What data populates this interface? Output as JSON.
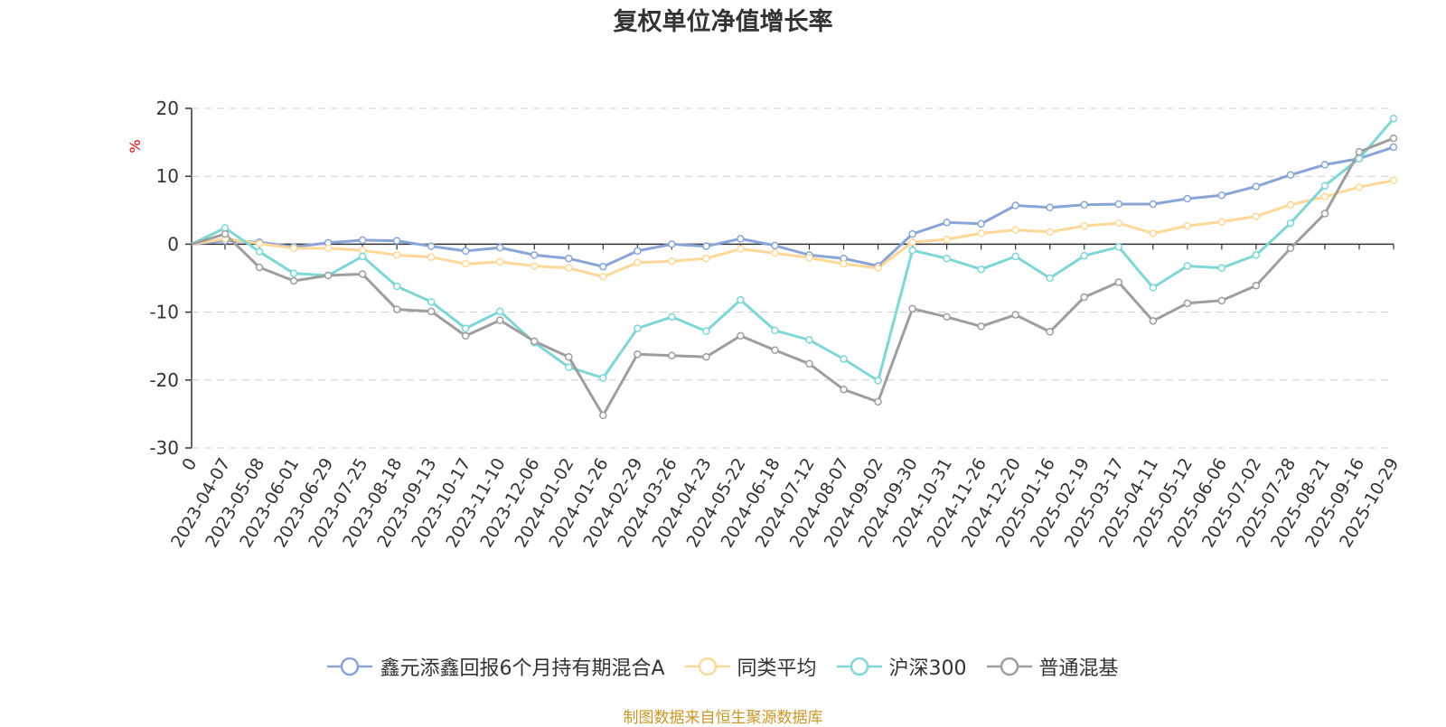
{
  "chart_data": {
    "type": "line",
    "title": "复权单位净值增长率",
    "ylabel": "%",
    "ylim": [
      -30,
      20
    ],
    "yticks": [
      "20",
      "10",
      "0",
      "-10",
      "-20",
      "-30"
    ],
    "x_origin_label": "0",
    "categories": [
      "2023-04-07",
      "2023-05-08",
      "2023-06-01",
      "2023-06-29",
      "2023-07-25",
      "2023-08-18",
      "2023-09-13",
      "2023-10-17",
      "2023-11-10",
      "2023-12-06",
      "2024-01-02",
      "2024-01-26",
      "2024-02-29",
      "2024-03-26",
      "2024-04-23",
      "2024-05-22",
      "2024-06-18",
      "2024-07-12",
      "2024-08-07",
      "2024-09-02",
      "2024-09-30",
      "2024-10-31",
      "2024-11-26",
      "2024-12-20",
      "2025-01-16",
      "2025-02-19",
      "2025-03-17",
      "2025-04-11",
      "2025-05-12",
      "2025-06-06",
      "2025-07-02",
      "2025-07-28",
      "2025-08-21",
      "2025-09-16",
      "2025-10-29"
    ],
    "series": [
      {
        "name": "鑫元添鑫回报6个月持有期混合A",
        "color": "#8aa4d6",
        "values": [
          0.5,
          0.3,
          -0.4,
          0.2,
          0.6,
          0.5,
          -0.3,
          -1.0,
          -0.5,
          -1.6,
          -2.1,
          -3.3,
          -1.0,
          0.0,
          -0.3,
          0.8,
          -0.2,
          -1.6,
          -2.1,
          -3.2,
          1.5,
          3.2,
          3.0,
          5.7,
          5.4,
          5.8,
          5.9,
          5.9,
          6.7,
          7.2,
          8.5,
          10.2,
          11.7,
          12.6,
          14.3
        ]
      },
      {
        "name": "同类平均",
        "color": "#ffd899",
        "values": [
          0.8,
          0.1,
          -0.6,
          -0.6,
          -0.9,
          -1.6,
          -1.9,
          -2.9,
          -2.6,
          -3.2,
          -3.5,
          -4.8,
          -2.7,
          -2.5,
          -2.1,
          -0.7,
          -1.3,
          -2.0,
          -2.9,
          -3.5,
          0.3,
          0.7,
          1.6,
          2.1,
          1.8,
          2.7,
          3.1,
          1.6,
          2.7,
          3.3,
          4.1,
          5.8,
          7.0,
          8.4,
          9.4
        ]
      },
      {
        "name": "沪深300",
        "color": "#7fd6d6",
        "values": [
          2.4,
          -1.1,
          -4.3,
          -4.6,
          -1.8,
          -6.2,
          -8.5,
          -12.4,
          -9.9,
          -14.5,
          -18.1,
          -19.7,
          -12.4,
          -10.7,
          -12.8,
          -8.2,
          -12.7,
          -14.1,
          -16.9,
          -20.1,
          -0.9,
          -2.1,
          -3.7,
          -1.8,
          -5.0,
          -1.7,
          -0.4,
          -6.4,
          -3.2,
          -3.5,
          -1.6,
          3.1,
          8.6,
          12.6,
          18.5
        ]
      },
      {
        "name": "普通混基",
        "color": "#9e9e9e",
        "values": [
          1.5,
          -3.4,
          -5.4,
          -4.6,
          -4.4,
          -9.6,
          -9.9,
          -13.5,
          -11.2,
          -14.3,
          -16.6,
          -25.2,
          -16.2,
          -16.4,
          -16.6,
          -13.5,
          -15.6,
          -17.6,
          -21.4,
          -23.2,
          -9.5,
          -10.7,
          -12.1,
          -10.4,
          -12.9,
          -7.8,
          -5.6,
          -11.3,
          -8.7,
          -8.3,
          -6.1,
          -0.6,
          4.5,
          13.6,
          15.6
        ]
      }
    ]
  },
  "source_text": "制图数据来自恒生聚源数据库"
}
